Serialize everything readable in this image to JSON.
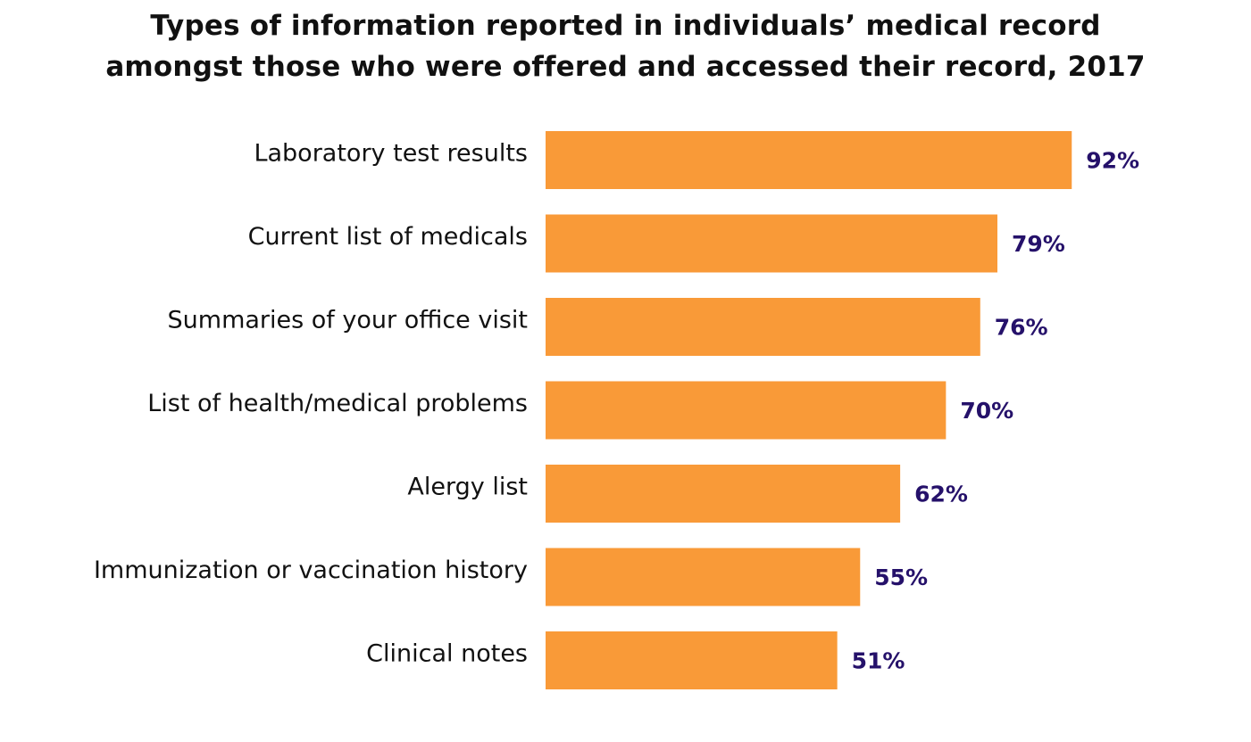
{
  "chart_data": {
    "type": "bar",
    "orientation": "horizontal",
    "title_lines": [
      "Types of information reported in individuals’ medical record",
      "amongst those who were offered and accessed their record, 2017"
    ],
    "categories": [
      "Laboratory test results",
      "Current list of medicals",
      "Summaries of your office visit",
      "List of health/medical problems",
      "Alergy list",
      "Immunization or vaccination history",
      "Clinical notes"
    ],
    "values": [
      92,
      79,
      76,
      70,
      62,
      55,
      51
    ],
    "value_labels": [
      "92%",
      "79%",
      "76%",
      "70%",
      "62%",
      "55%",
      "51%"
    ],
    "xlim": [
      0,
      100
    ],
    "grid": false,
    "legend": "none",
    "colors": {
      "bar": "#F99A38",
      "value_label": "#25116A"
    }
  }
}
